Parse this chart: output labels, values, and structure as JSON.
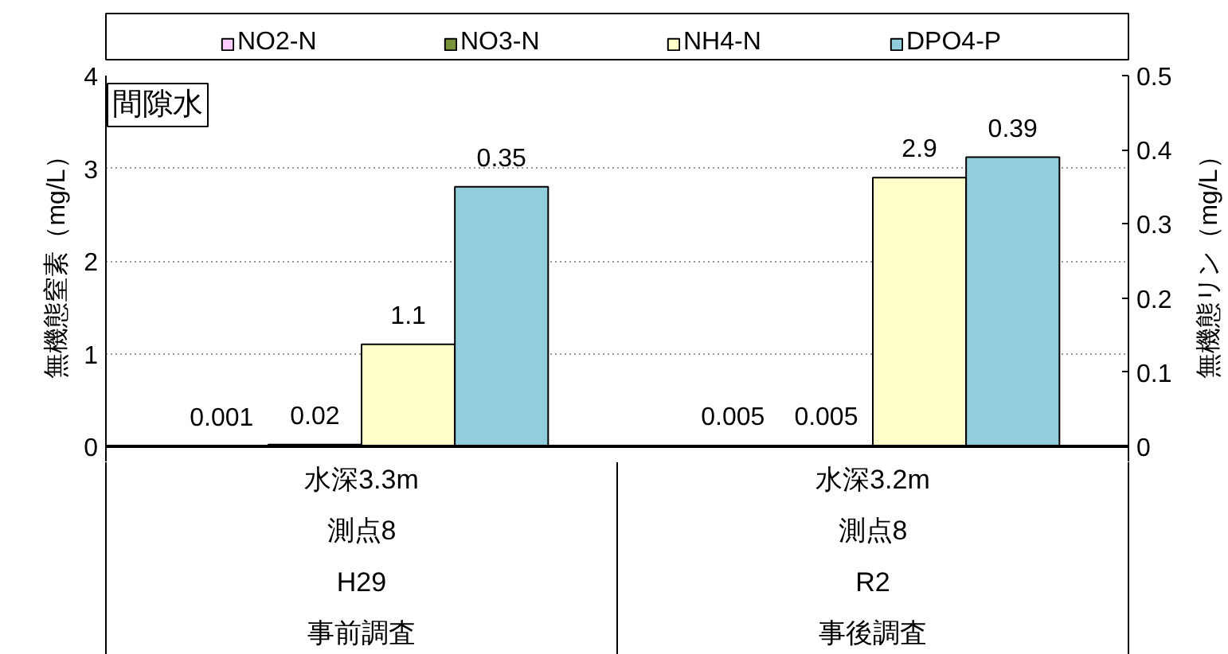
{
  "chart_data": {
    "type": "bar",
    "title": "間隙水",
    "ylabel": "無機態窒素（mg/L）",
    "y2label": "無機態リン（mg/L）",
    "categories": [
      "水深3.3m\n測点8\nH29\n事前調査",
      "水深3.2m\n測点8\nR2\n事後調査"
    ],
    "series": [
      {
        "name": "NO2-N",
        "color": "#ffccff",
        "values": [
          0.001,
          0.005
        ]
      },
      {
        "name": "NO3-N",
        "color": "#77933c",
        "values": [
          0.02,
          0.005
        ]
      },
      {
        "name": "NH4-N",
        "color": "#ffffcc",
        "values": [
          1.1,
          2.9
        ]
      },
      {
        "name": "DPO4-P",
        "color": "#92cddc",
        "values": [
          0.35,
          0.39
        ],
        "axis": "y2"
      }
    ],
    "ylim": [
      0,
      4
    ],
    "yticks": [
      0,
      1,
      2,
      3,
      4
    ],
    "y2lim": [
      0,
      0.5
    ],
    "y2ticks": [
      0,
      0.1,
      0.2,
      0.3,
      0.4,
      0.5
    ],
    "grid": "y",
    "legend": "top",
    "data_labels": true
  }
}
